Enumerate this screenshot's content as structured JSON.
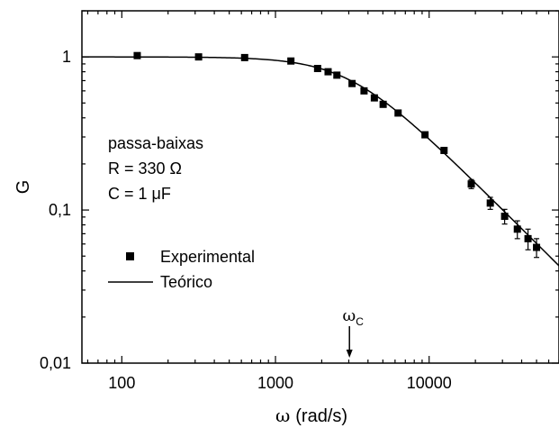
{
  "chart_data": {
    "type": "scatter",
    "xscale": "log",
    "yscale": "log",
    "xlim": [
      55,
      70000
    ],
    "ylim": [
      0.01,
      2
    ],
    "xlabel": {
      "symbol": "ω",
      "text": "(rad/s)"
    },
    "ylabel": "G",
    "x_ticks": [
      {
        "value": 100,
        "label": "100"
      },
      {
        "value": 1000,
        "label": "1000"
      },
      {
        "value": 10000,
        "label": "10000"
      }
    ],
    "y_ticks": [
      {
        "value": 1,
        "label": "1"
      },
      {
        "value": 0.1,
        "label": "0,1"
      },
      {
        "value": 0.01,
        "label": "0,01"
      }
    ],
    "annotation_block": [
      "passa-baixas",
      "R = 330 Ω",
      "C = 1 μF"
    ],
    "cutoff_marker": {
      "symbol": "ω",
      "subscript": "C",
      "x": 3030
    },
    "series": [
      {
        "name": "Experimental",
        "kind": "scatter-errorbars",
        "color": "#000000",
        "points": [
          {
            "x": 126,
            "y": 1.02,
            "err": 0.02
          },
          {
            "x": 316,
            "y": 1.0,
            "err": 0.02
          },
          {
            "x": 630,
            "y": 0.99,
            "err": 0.02
          },
          {
            "x": 1260,
            "y": 0.94,
            "err": 0.02
          },
          {
            "x": 1880,
            "y": 0.84,
            "err": 0.02
          },
          {
            "x": 2200,
            "y": 0.8,
            "err": 0.02
          },
          {
            "x": 2510,
            "y": 0.76,
            "err": 0.02
          },
          {
            "x": 3150,
            "y": 0.67,
            "err": 0.02
          },
          {
            "x": 3770,
            "y": 0.6,
            "err": 0.02
          },
          {
            "x": 4400,
            "y": 0.54,
            "err": 0.02
          },
          {
            "x": 5020,
            "y": 0.49,
            "err": 0.02
          },
          {
            "x": 6280,
            "y": 0.43,
            "err": 0.015
          },
          {
            "x": 9400,
            "y": 0.31,
            "err": 0.012
          },
          {
            "x": 12500,
            "y": 0.245,
            "err": 0.01
          },
          {
            "x": 18800,
            "y": 0.148,
            "err": 0.01
          },
          {
            "x": 25000,
            "y": 0.111,
            "err": 0.01
          },
          {
            "x": 31000,
            "y": 0.091,
            "err": 0.01
          },
          {
            "x": 37500,
            "y": 0.075,
            "err": 0.01
          },
          {
            "x": 44000,
            "y": 0.065,
            "err": 0.01
          },
          {
            "x": 50000,
            "y": 0.057,
            "err": 0.008
          }
        ]
      },
      {
        "name": "Teórico",
        "kind": "line",
        "color": "#000000",
        "model": "1/sqrt(1+(omega*R*C)^2)",
        "R": 330,
        "C": 1e-06
      }
    ],
    "legend": [
      {
        "label": "Experimental",
        "marker": "square"
      },
      {
        "label": "Teórico",
        "marker": "line"
      }
    ],
    "legend_position": "center-left",
    "grid": false
  }
}
